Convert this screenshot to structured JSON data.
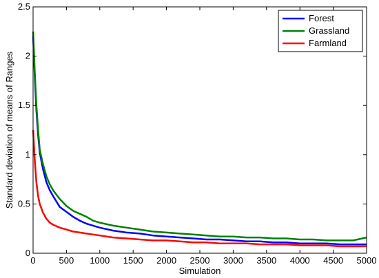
{
  "chart_data": {
    "type": "line",
    "title": "",
    "xlabel": "Simulation",
    "ylabel": "Standard deviation of means of Ranges",
    "xlim": [
      0,
      5000
    ],
    "ylim": [
      0,
      2.5
    ],
    "xticks": [
      0,
      500,
      1000,
      1500,
      2000,
      2500,
      3000,
      3500,
      4000,
      4500,
      5000
    ],
    "yticks": [
      0,
      0.5,
      1,
      1.5,
      2,
      2.5
    ],
    "xtick_labels": [
      "0",
      "500",
      "1000",
      "1500",
      "2000",
      "2500",
      "3000",
      "3500",
      "4000",
      "4500",
      "5000"
    ],
    "ytick_labels": [
      "0",
      "0.5",
      "1",
      "1.5",
      "2",
      "2.5"
    ],
    "grid": false,
    "legend_position": "top-right",
    "x": [
      1,
      25,
      50,
      75,
      100,
      150,
      200,
      250,
      300,
      400,
      500,
      600,
      700,
      800,
      900,
      1000,
      1200,
      1400,
      1600,
      1800,
      2000,
      2200,
      2400,
      2600,
      2800,
      3000,
      3200,
      3400,
      3600,
      3800,
      4000,
      4200,
      4400,
      4600,
      4800,
      5000
    ],
    "series": [
      {
        "name": "Forest",
        "color": "#0000ff",
        "values": [
          2.2,
          1.8,
          1.45,
          1.2,
          1.02,
          0.85,
          0.72,
          0.64,
          0.58,
          0.47,
          0.42,
          0.37,
          0.33,
          0.3,
          0.28,
          0.26,
          0.23,
          0.21,
          0.2,
          0.18,
          0.17,
          0.16,
          0.15,
          0.14,
          0.14,
          0.13,
          0.12,
          0.12,
          0.11,
          0.11,
          0.1,
          0.1,
          0.1,
          0.09,
          0.09,
          0.09
        ]
      },
      {
        "name": "Grassland",
        "color": "#008000",
        "values": [
          2.25,
          1.85,
          1.5,
          1.25,
          1.05,
          0.9,
          0.78,
          0.7,
          0.64,
          0.55,
          0.48,
          0.43,
          0.4,
          0.37,
          0.33,
          0.31,
          0.28,
          0.26,
          0.24,
          0.22,
          0.21,
          0.2,
          0.19,
          0.18,
          0.17,
          0.17,
          0.16,
          0.16,
          0.15,
          0.15,
          0.14,
          0.14,
          0.13,
          0.13,
          0.13,
          0.16
        ]
      },
      {
        "name": "Farmland",
        "color": "#ff0000",
        "values": [
          1.25,
          0.95,
          0.72,
          0.58,
          0.5,
          0.41,
          0.35,
          0.31,
          0.29,
          0.26,
          0.24,
          0.22,
          0.21,
          0.2,
          0.19,
          0.18,
          0.16,
          0.15,
          0.14,
          0.13,
          0.13,
          0.12,
          0.11,
          0.11,
          0.1,
          0.1,
          0.1,
          0.09,
          0.09,
          0.09,
          0.08,
          0.08,
          0.08,
          0.07,
          0.07,
          0.07
        ]
      }
    ]
  }
}
